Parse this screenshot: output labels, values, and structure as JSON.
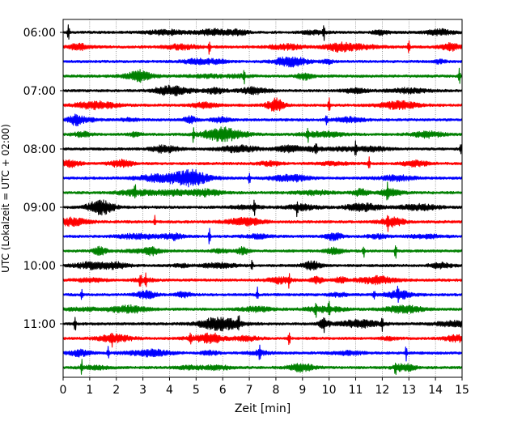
{
  "chart_data": {
    "type": "line",
    "title": "",
    "xlabel": "Zeit  [min]",
    "ylabel": "UTC (Lokalzeit = UTC + 02:00)",
    "xlim": [
      0,
      15
    ],
    "x_ticks": [
      0,
      1,
      2,
      3,
      4,
      5,
      6,
      7,
      8,
      9,
      10,
      11,
      12,
      13,
      14,
      15
    ],
    "x_tick_labels": [
      "0",
      "1",
      "2",
      "3",
      "4",
      "5",
      "6",
      "7",
      "8",
      "9",
      "10",
      "11",
      "12",
      "13",
      "14",
      "15"
    ],
    "y_tick_labels": [
      "06:00",
      "07:00",
      "08:00",
      "09:00",
      "10:00",
      "11:00"
    ],
    "y_tick_rows": [
      0,
      4,
      8,
      12,
      16,
      20
    ],
    "row_interval_minutes": 15,
    "grid": "vertical-dotted",
    "color_cycle": [
      "#000000",
      "#ff0000",
      "#0000ff",
      "#008000"
    ],
    "series": [
      {
        "start": "06:00",
        "color": "#000000",
        "events": [
          0.2,
          9.8
        ]
      },
      {
        "start": "06:15",
        "color": "#ff0000",
        "events": [
          5.5,
          13.0
        ]
      },
      {
        "start": "06:30",
        "color": "#0000ff",
        "events": []
      },
      {
        "start": "06:45",
        "color": "#008000",
        "events": [
          6.8,
          14.9
        ]
      },
      {
        "start": "07:00",
        "color": "#000000",
        "events": []
      },
      {
        "start": "07:15",
        "color": "#ff0000",
        "events": [
          10.0
        ]
      },
      {
        "start": "07:30",
        "color": "#0000ff",
        "events": [
          9.9
        ]
      },
      {
        "start": "07:45",
        "color": "#008000",
        "events": [
          4.9,
          9.2
        ]
      },
      {
        "start": "08:00",
        "color": "#000000",
        "events": [
          9.5,
          11.0,
          14.95
        ]
      },
      {
        "start": "08:15",
        "color": "#ff0000",
        "events": [
          11.5
        ]
      },
      {
        "start": "08:30",
        "color": "#0000ff",
        "events": [
          7.0
        ]
      },
      {
        "start": "08:45",
        "color": "#008000",
        "events": [
          2.7,
          12.2
        ]
      },
      {
        "start": "09:00",
        "color": "#000000",
        "events": [
          7.2,
          8.8
        ]
      },
      {
        "start": "09:15",
        "color": "#ff0000",
        "events": [
          3.45,
          12.2
        ]
      },
      {
        "start": "09:30",
        "color": "#0000ff",
        "events": [
          5.5
        ]
      },
      {
        "start": "09:45",
        "color": "#008000",
        "events": [
          11.3,
          12.5
        ]
      },
      {
        "start": "10:00",
        "color": "#000000",
        "events": [
          7.1
        ]
      },
      {
        "start": "10:15",
        "color": "#ff0000",
        "events": [
          2.9,
          3.1,
          8.5
        ]
      },
      {
        "start": "10:30",
        "color": "#0000ff",
        "events": [
          0.7,
          7.3,
          11.7,
          12.6
        ]
      },
      {
        "start": "10:45",
        "color": "#008000",
        "events": [
          9.5,
          10.0
        ]
      },
      {
        "start": "11:00",
        "color": "#000000",
        "events": [
          0.45,
          6.6,
          9.8,
          12.0
        ]
      },
      {
        "start": "11:15",
        "color": "#ff0000",
        "events": [
          1.85,
          4.8,
          8.5
        ]
      },
      {
        "start": "11:30",
        "color": "#0000ff",
        "events": [
          1.7,
          7.4,
          12.9
        ]
      },
      {
        "start": "11:45",
        "color": "#008000",
        "events": [
          0.7,
          12.5
        ]
      }
    ]
  }
}
